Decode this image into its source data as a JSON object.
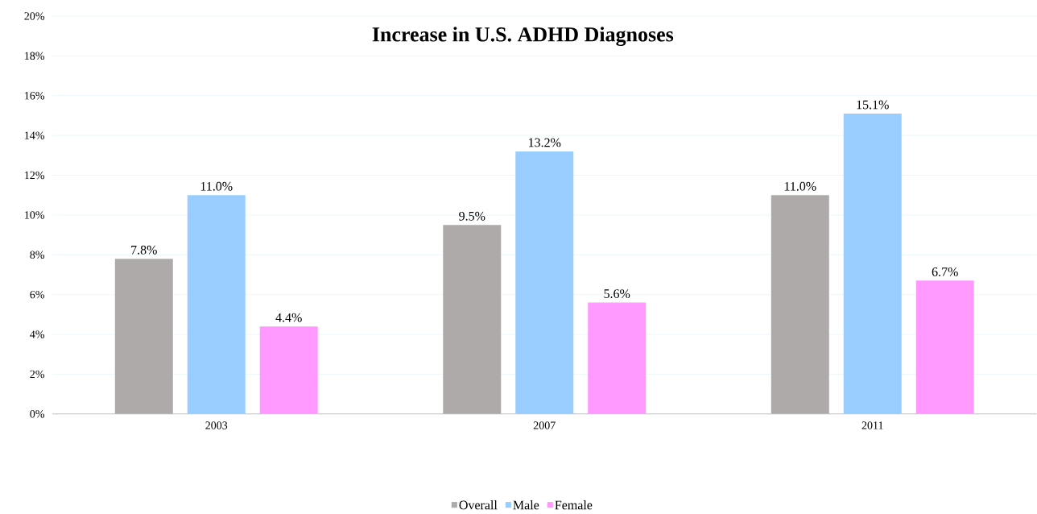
{
  "chart_data": {
    "type": "bar",
    "title": "Increase in U.S. ADHD Diagnoses",
    "categories": [
      "2003",
      "2007",
      "2011"
    ],
    "series": [
      {
        "name": "Overall",
        "color": "#aeaaaa",
        "values": [
          7.8,
          9.5,
          11.0
        ],
        "value_labels": [
          "7.8%",
          "9.5%",
          "11.0%"
        ]
      },
      {
        "name": "Male",
        "color": "#99ccff",
        "values": [
          11.0,
          13.2,
          15.1
        ],
        "value_labels": [
          "11.0%",
          "13.2%",
          "15.1%"
        ]
      },
      {
        "name": "Female",
        "color": "#ff99ff",
        "values": [
          4.4,
          5.6,
          6.7
        ],
        "value_labels": [
          "4.4%",
          "5.6%",
          "6.7%"
        ]
      }
    ],
    "ylim": [
      0,
      20
    ],
    "yticks": [
      {
        "value": 0,
        "label": "0%"
      },
      {
        "value": 2,
        "label": "2%"
      },
      {
        "value": 4,
        "label": "4%"
      },
      {
        "value": 6,
        "label": "6%"
      },
      {
        "value": 8,
        "label": "8%"
      },
      {
        "value": 10,
        "label": "10%"
      },
      {
        "value": 12,
        "label": "12%"
      },
      {
        "value": 14,
        "label": "14%"
      },
      {
        "value": 16,
        "label": "16%"
      },
      {
        "value": 18,
        "label": "18%"
      },
      {
        "value": 20,
        "label": "20%"
      }
    ],
    "grid": "y",
    "legend": "bottom"
  }
}
